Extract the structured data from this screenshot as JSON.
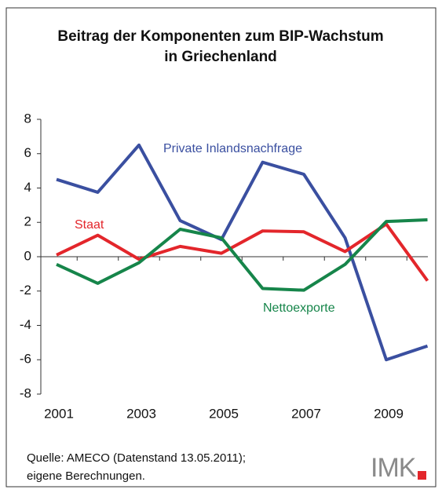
{
  "chart_data": {
    "type": "line",
    "title": [
      "Beitrag der Komponenten zum BIP-Wachstum",
      "in Griechenland"
    ],
    "categories": [
      "2001",
      null,
      "2003",
      null,
      "2005",
      null,
      "2007",
      null,
      "2009",
      null
    ],
    "series": [
      {
        "name": "Private Inlandsnachfrage",
        "color": "#3a4fa0",
        "values": [
          4.5,
          3.75,
          6.5,
          2.1,
          1.0,
          5.5,
          4.8,
          1.1,
          -6.0,
          -5.2
        ]
      },
      {
        "name": "Staat",
        "color": "#e3262b",
        "values": [
          0.1,
          1.25,
          -0.15,
          0.6,
          0.2,
          1.5,
          1.45,
          0.3,
          1.9,
          -1.4
        ]
      },
      {
        "name": "Nettoexporte",
        "color": "#16854a",
        "values": [
          -0.45,
          -1.55,
          -0.35,
          1.6,
          1.1,
          -1.85,
          -1.95,
          -0.45,
          2.05,
          2.15
        ]
      }
    ],
    "ylim": [
      -8,
      8
    ],
    "yticks": [
      -8,
      -6,
      -4,
      -2,
      0,
      2,
      4,
      6,
      8
    ],
    "source": [
      "Quelle: AMECO (Datenstand 13.05.2011);",
      "eigene Berechnungen."
    ],
    "logo": "IMK"
  }
}
